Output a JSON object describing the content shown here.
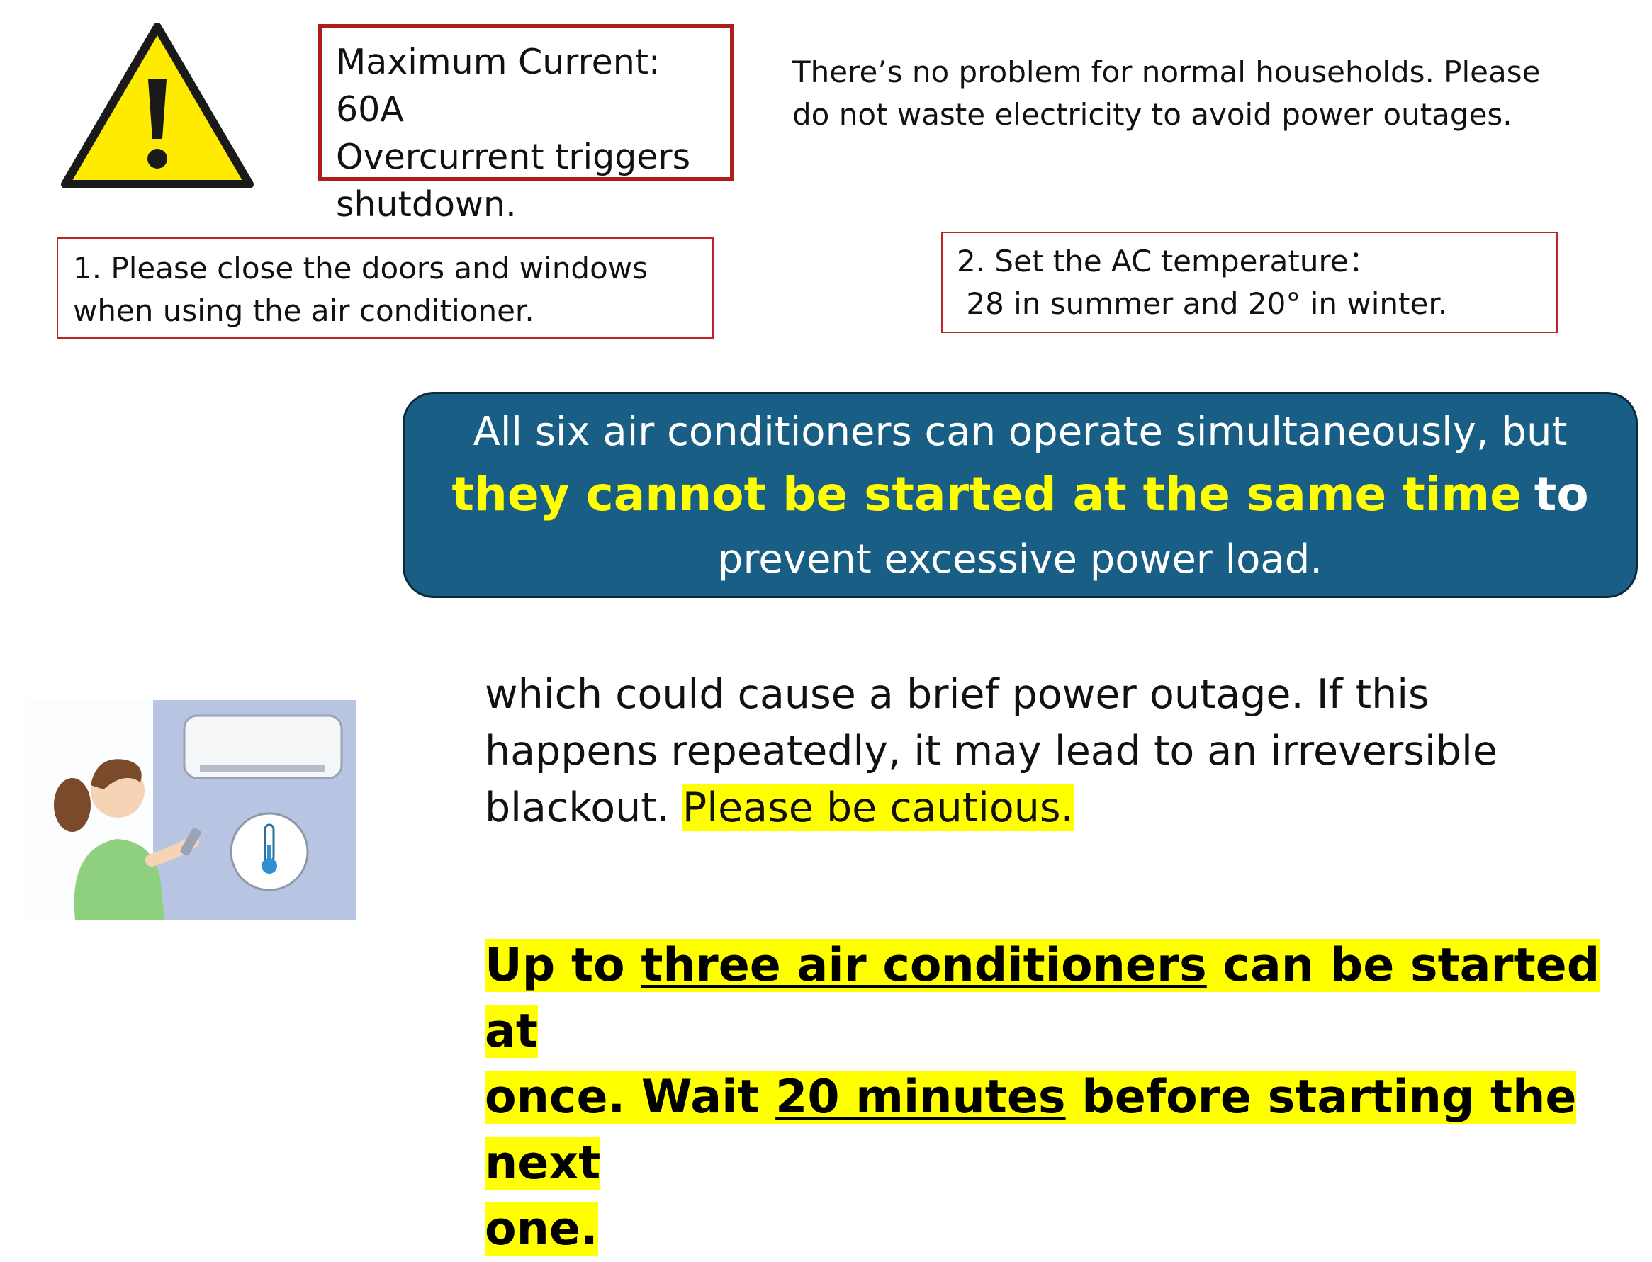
{
  "warning": {
    "icon": "warning-triangle-icon",
    "fill": "#FFEB00"
  },
  "current_box": {
    "line1": "Maximum Current: 60A",
    "line2": "Overcurrent triggers",
    "line3": "shutdown.",
    "border_color": "#B01C1C"
  },
  "household_note": {
    "line1": "There’s no problem for normal households. Please",
    "line2": "do not waste electricity to avoid power outages."
  },
  "tip1": {
    "line1": "1. Please close the doors and windows",
    "line2": "when using the air conditioner."
  },
  "tip2": {
    "line1": "2. Set the AC temperature：",
    "line2": " 28 in summer and 20° in winter."
  },
  "banner": {
    "line1": "All six air conditioners can operate simultaneously, but",
    "highlight": "they cannot be started at the same time",
    "bold_word": "to",
    "line3": "prevent excessive power load.",
    "background": "#195F85",
    "highlight_color": "#FFFF00"
  },
  "illustration": {
    "icon": "woman-adjusting-air-conditioner-illustration"
  },
  "outage": {
    "line1": "which could cause a brief power outage. If this",
    "line2": "happens repeatedly, it may lead to an irreversible",
    "line3_prefix": "blackout.",
    "line3_highlight": "Please be cautious."
  },
  "startup": {
    "part1": "Up to",
    "underline1": "three air conditioners",
    "part2": "can be started at",
    "part3": "once. Wait",
    "underline2": "20 minutes",
    "part4": "before starting the next",
    "part5": "one."
  }
}
